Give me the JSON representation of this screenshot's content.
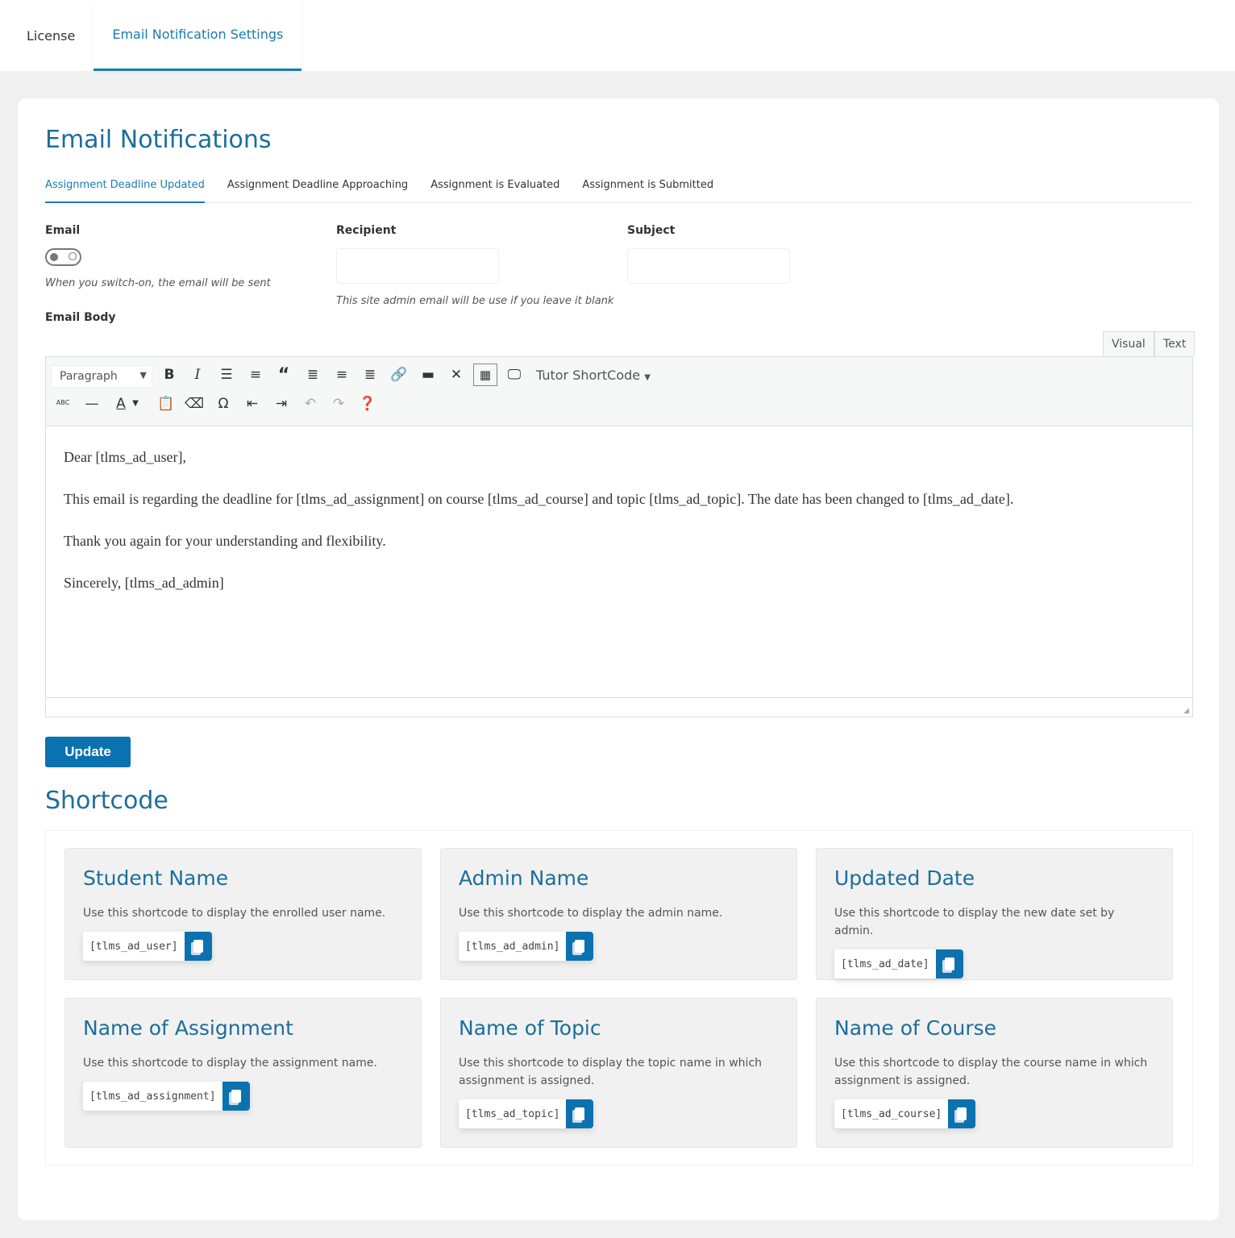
{
  "top_tabs": [
    {
      "label": "License"
    },
    {
      "label": "Email Notification Settings",
      "active": true
    }
  ],
  "title": "Email Notifications",
  "sub_tabs": [
    {
      "label": "Assignment Deadline Updated",
      "active": true
    },
    {
      "label": "Assignment Deadline Approaching"
    },
    {
      "label": "Assignment is Evaluated"
    },
    {
      "label": "Assignment is Submitted"
    }
  ],
  "form": {
    "email_label": "Email",
    "email_toggle_on": false,
    "email_hint": "When you switch-on, the email will be sent",
    "recipient_label": "Recipient",
    "recipient_value": "",
    "recipient_hint": "This site admin email will be use if you leave it blank",
    "subject_label": "Subject",
    "subject_value": "",
    "body_label": "Email Body"
  },
  "editor": {
    "mode_tabs": [
      "Visual",
      "Text"
    ],
    "format_select": "Paragraph",
    "shortcode_menu": "Tutor ShortCode",
    "toolbar_row1": [
      "bold-icon",
      "italic-icon",
      "bullet-list-icon",
      "numbered-list-icon",
      "blockquote-icon",
      "align-left-icon",
      "align-center-icon",
      "align-right-icon",
      "link-icon",
      "read-more-icon",
      "fullscreen-icon",
      "toolbar-toggle-icon",
      "preview-icon"
    ],
    "toolbar_row2": [
      "strikethrough-icon",
      "horizontal-line-icon",
      "text-color-icon",
      "paste-text-icon",
      "clear-formatting-icon",
      "special-character-icon",
      "outdent-icon",
      "indent-icon",
      "undo-icon",
      "redo-icon",
      "help-icon"
    ],
    "paragraphs": [
      "Dear [tlms_ad_user],",
      "This email is regarding the deadline for [tlms_ad_assignment] on course [tlms_ad_course] and topic [tlms_ad_topic]. The date has been changed to [tlms_ad_date].",
      "Thank you again for your understanding and flexibility.",
      "Sincerely, [tlms_ad_admin]"
    ]
  },
  "update_label": "Update",
  "shortcode_title": "Shortcode",
  "shortcodes": [
    {
      "title": "Student Name",
      "desc": "Use this shortcode to display the enrolled user name.",
      "code": "[tlms_ad_user]"
    },
    {
      "title": "Admin Name",
      "desc": "Use this shortcode to display the admin name.",
      "code": "[tlms_ad_admin]"
    },
    {
      "title": "Updated Date",
      "desc": "Use this shortcode to display the new date set by admin.",
      "code": "[tlms_ad_date]"
    },
    {
      "title": "Name of Assignment",
      "desc": "Use this shortcode to display the assignment name.",
      "code": "[tlms_ad_assignment]"
    },
    {
      "title": "Name of Topic",
      "desc": "Use this shortcode to display the topic name in which assignment is assigned.",
      "code": "[tlms_ad_topic]"
    },
    {
      "title": "Name of Course",
      "desc": "Use this shortcode to display the course name in which assignment is assigned.",
      "code": "[tlms_ad_course]"
    }
  ],
  "colors": {
    "accent": "#1a7bb0",
    "button": "#0b72b0",
    "heading": "#1d6e9a"
  }
}
